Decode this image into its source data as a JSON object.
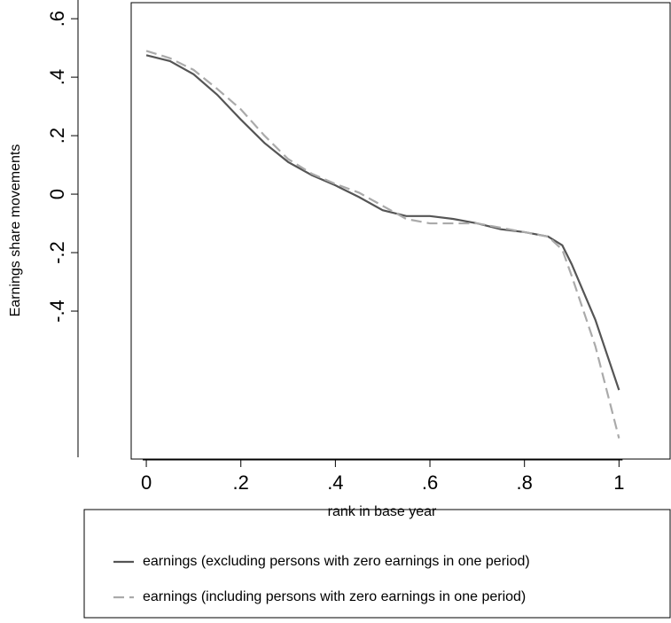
{
  "chart_data": {
    "type": "line",
    "x_label": "rank in base year",
    "y_label": "Earnings share movements",
    "x": [
      0,
      0.05,
      0.1,
      0.15,
      0.2,
      0.25,
      0.3,
      0.35,
      0.4,
      0.45,
      0.5,
      0.55,
      0.6,
      0.65,
      0.7,
      0.75,
      0.8,
      0.85,
      0.88,
      0.9,
      0.95,
      1.0
    ],
    "series": [
      {
        "name": "earnings (excluding persons with zero earnings in one period)",
        "color": "#555555",
        "dash": false,
        "values": [
          0.475,
          0.455,
          0.41,
          0.34,
          0.255,
          0.175,
          0.11,
          0.065,
          0.03,
          -0.01,
          -0.055,
          -0.075,
          -0.075,
          -0.085,
          -0.1,
          -0.12,
          -0.13,
          -0.145,
          -0.175,
          -0.24,
          -0.43,
          -0.67
        ]
      },
      {
        "name": "earnings (including persons with zero earnings in one period)",
        "color": "#aaaaaa",
        "dash": true,
        "values": [
          0.49,
          0.465,
          0.425,
          0.36,
          0.29,
          0.2,
          0.12,
          0.07,
          0.035,
          0.005,
          -0.04,
          -0.085,
          -0.1,
          -0.1,
          -0.1,
          -0.115,
          -0.13,
          -0.145,
          -0.19,
          -0.28,
          -0.52,
          -0.835
        ]
      }
    ],
    "xlim": [
      -0.032,
      1.11
    ],
    "ylim": [
      -0.9,
      0.664
    ],
    "xticks": [
      0,
      {
        "value": 0.2,
        "label": ".2"
      },
      {
        "value": 0.4,
        "label": ".4"
      },
      {
        "value": 0.6,
        "label": ".6"
      },
      {
        "value": 0.8,
        "label": ".8"
      },
      1
    ],
    "yticks": [
      {
        "value": -0.4,
        "label": "-.4"
      },
      {
        "value": -0.2,
        "label": "-.2"
      },
      0,
      {
        "value": 0.2,
        "label": ".2"
      },
      {
        "value": 0.4,
        "label": ".4"
      },
      {
        "value": 0.6,
        "label": ".6"
      }
    ],
    "grid": false
  }
}
